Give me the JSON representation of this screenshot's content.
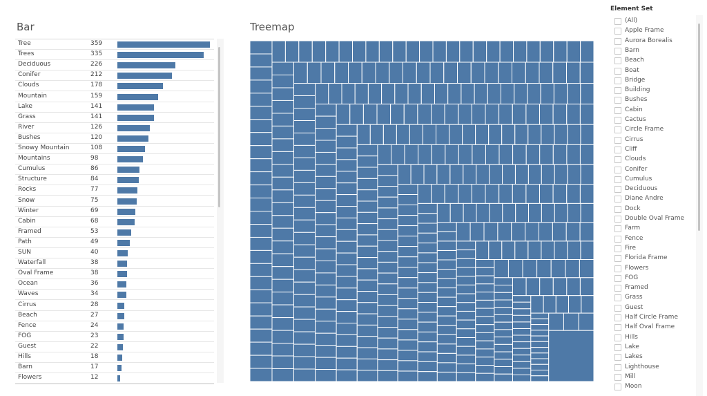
{
  "bar_panel": {
    "title": "Bar"
  },
  "treemap_panel": {
    "title": "Treemap"
  },
  "filter": {
    "title": "Element Set",
    "items": [
      "(All)",
      "Apple Frame",
      "Aurora Borealis",
      "Barn",
      "Beach",
      "Boat",
      "Bridge",
      "Building",
      "Bushes",
      "Cabin",
      "Cactus",
      "Circle Frame",
      "Cirrus",
      "Cliff",
      "Clouds",
      "Conifer",
      "Cumulus",
      "Deciduous",
      "Diane Andre",
      "Dock",
      "Double Oval Frame",
      "Farm",
      "Fence",
      "Fire",
      "Florida Frame",
      "Flowers",
      "FOG",
      "Framed",
      "Grass",
      "Guest",
      "Half Circle Frame",
      "Half Oval Frame",
      "Hills",
      "Lake",
      "Lakes",
      "Lighthouse",
      "Mill",
      "Moon"
    ]
  },
  "colors": {
    "bar": "#4e79a7",
    "treemap_cell": "#4e79a7",
    "treemap_border": "#ffffff"
  },
  "chart_data": [
    {
      "type": "bar",
      "title": "Bar",
      "orientation": "horizontal",
      "categories": [
        "Tree",
        "Trees",
        "Deciduous",
        "Conifer",
        "Clouds",
        "Mountain",
        "Lake",
        "Grass",
        "River",
        "Bushes",
        "Snowy Mountain",
        "Mountains",
        "Cumulus",
        "Structure",
        "Rocks",
        "Snow",
        "Winter",
        "Cabin",
        "Framed",
        "Path",
        "SUN",
        "Waterfall",
        "Oval Frame",
        "Ocean",
        "Waves",
        "Cirrus",
        "Beach",
        "Fence",
        "FOG",
        "Guest",
        "Hills",
        "Barn",
        "Flowers"
      ],
      "values": [
        359,
        335,
        226,
        212,
        178,
        159,
        141,
        141,
        126,
        120,
        108,
        98,
        86,
        84,
        77,
        75,
        69,
        68,
        53,
        49,
        40,
        38,
        38,
        36,
        34,
        28,
        27,
        24,
        23,
        22,
        18,
        17,
        12
      ],
      "xlim": [
        0,
        359
      ]
    },
    {
      "type": "treemap",
      "title": "Treemap",
      "cell_color": "#4e79a7"
    }
  ]
}
